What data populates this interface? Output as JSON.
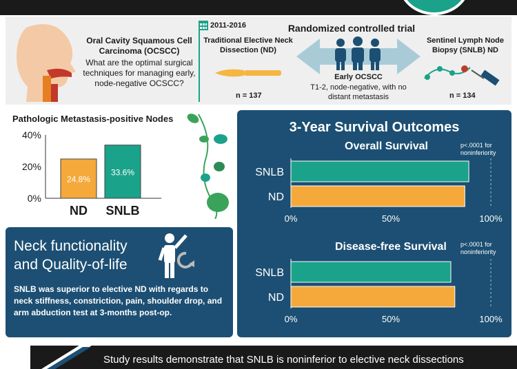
{
  "header": {
    "title_left": "Oral Cavity Squamous Cell Carcinoma (OCSCC)",
    "question": "What are the optimal surgical techniques for managing early, node-negative OCSCC?",
    "years": "2011-2016",
    "nd_title": "Traditional Elective Neck Dissection (ND)",
    "nd_n": "n = 137",
    "trial_title": "Randomized controlled trial",
    "early_title": "Early OCSCC",
    "early_desc": "T1-2, node-negative, with no distant metastasis",
    "snlb_title": "Sentinel Lymph Node Biopsy (SNLB) ND",
    "snlb_n": "n = 134"
  },
  "metastasis": {
    "title": "Pathologic Metastasis-positive Nodes"
  },
  "survival": {
    "title": "3-Year Survival Outcomes"
  },
  "neck": {
    "title_line1": "Neck functionality",
    "title_line2": "and Quality-of-life",
    "body": "SNLB was superior to elective ND with regards to neck stiffness, constriction, pain, shoulder drop, and arm abduction test at 3-months post-op."
  },
  "footer": {
    "text": "Study results demonstrate that SNLB is noninferior to elective neck dissections"
  },
  "colors": {
    "nd": "#f5a93a",
    "snlb": "#1ba28a",
    "navy": "#1c4f73"
  },
  "chart_data": [
    {
      "type": "bar",
      "title": "Pathologic Metastasis-positive Nodes",
      "categories": [
        "ND",
        "SNLB"
      ],
      "values": [
        24.8,
        33.6
      ],
      "value_labels": [
        "24.8%",
        "33.6%"
      ],
      "ylim": [
        0,
        40
      ],
      "yticks": [
        "0%",
        "20%",
        "40%"
      ]
    },
    {
      "type": "bar",
      "orientation": "horizontal",
      "title": "Overall Survival",
      "note": "p<.0001 for noninferiority",
      "categories": [
        "SNLB",
        "ND"
      ],
      "values": [
        89,
        87
      ],
      "xlim": [
        0,
        100
      ],
      "xticks": [
        "0%",
        "50%",
        "100%"
      ]
    },
    {
      "type": "bar",
      "orientation": "horizontal",
      "title": "Disease-free Survival",
      "note": "p<.0001 for noninferiority",
      "categories": [
        "SNLB",
        "ND"
      ],
      "values": [
        80,
        82
      ],
      "xlim": [
        0,
        100
      ],
      "xticks": [
        "0%",
        "50%",
        "100%"
      ]
    }
  ]
}
